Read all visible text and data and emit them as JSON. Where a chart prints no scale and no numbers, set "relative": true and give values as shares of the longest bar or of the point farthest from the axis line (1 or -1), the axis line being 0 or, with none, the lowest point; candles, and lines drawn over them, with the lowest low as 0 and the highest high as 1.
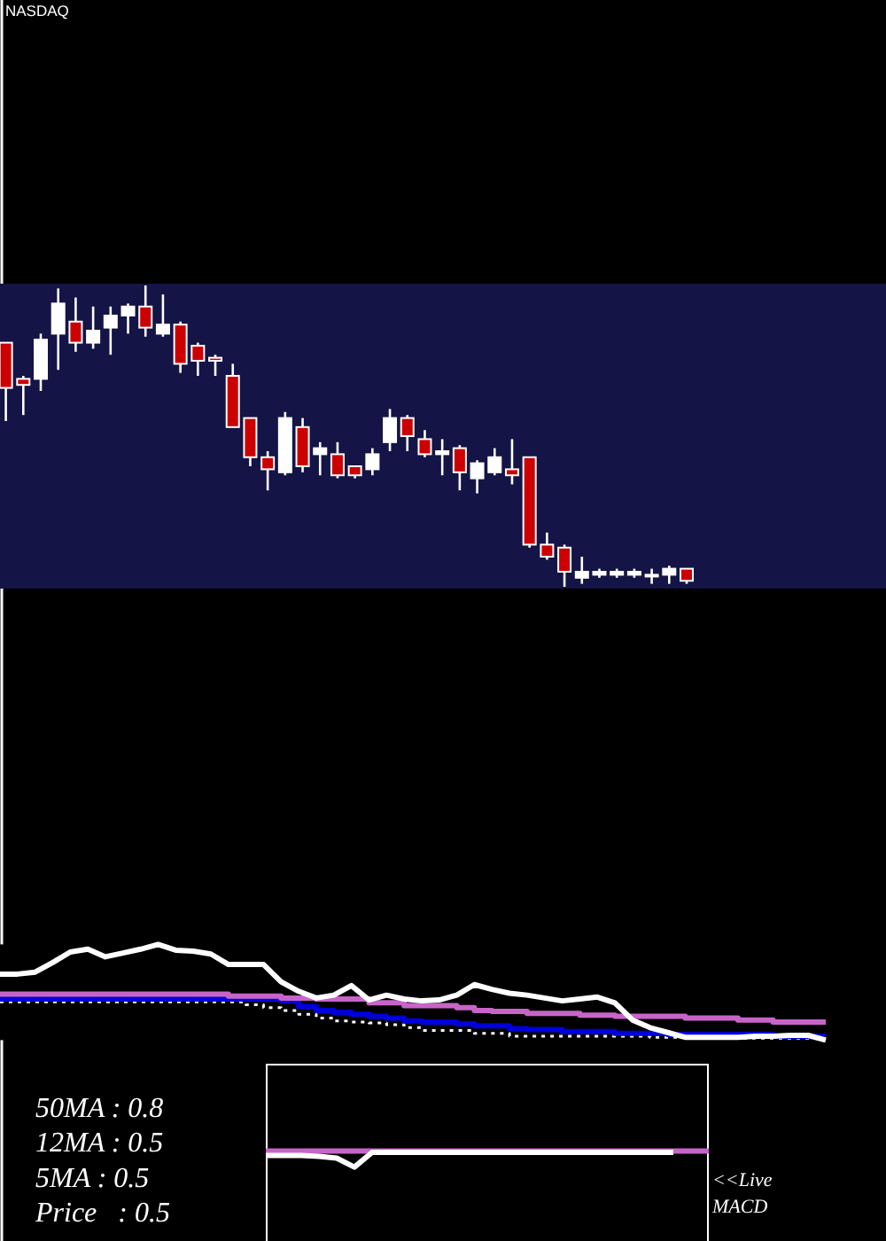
{
  "chart_data": [
    {
      "type": "candlestick",
      "title": "NASDAQ",
      "relative": true,
      "categories": [
        null,
        null,
        null,
        null,
        null,
        null,
        null,
        null,
        null,
        null,
        null,
        null,
        null,
        null,
        null,
        null,
        null,
        null,
        null,
        null,
        null,
        null,
        null,
        null,
        null,
        null,
        null,
        null,
        null,
        null,
        null,
        null,
        null,
        null,
        null,
        null,
        null,
        null,
        null,
        null
      ],
      "ohlc": [
        [
          0.81,
          0.81,
          0.55,
          0.66
        ],
        [
          0.69,
          0.7,
          0.57,
          0.67
        ],
        [
          0.69,
          0.84,
          0.65,
          0.82
        ],
        [
          0.84,
          0.99,
          0.72,
          0.94
        ],
        [
          0.88,
          0.96,
          0.78,
          0.81
        ],
        [
          0.81,
          0.93,
          0.79,
          0.85
        ],
        [
          0.86,
          0.93,
          0.77,
          0.9
        ],
        [
          0.9,
          0.94,
          0.84,
          0.93
        ],
        [
          0.93,
          1,
          0.83,
          0.86
        ],
        [
          0.84,
          0.97,
          0.83,
          0.87
        ],
        [
          0.87,
          0.88,
          0.71,
          0.74
        ],
        [
          0.8,
          0.81,
          0.7,
          0.75
        ],
        [
          0.76,
          0.77,
          0.7,
          0.75
        ],
        [
          0.7,
          0.74,
          0.53,
          0.53
        ],
        [
          0.56,
          0.56,
          0.4,
          0.43
        ],
        [
          0.43,
          0.45,
          0.32,
          0.39
        ],
        [
          0.38,
          0.58,
          0.37,
          0.56
        ],
        [
          0.53,
          0.56,
          0.38,
          0.4
        ],
        [
          0.44,
          0.48,
          0.37,
          0.46
        ],
        [
          0.44,
          0.48,
          0.36,
          0.37
        ],
        [
          0.4,
          0.4,
          0.36,
          0.37
        ],
        [
          0.39,
          0.46,
          0.37,
          0.44
        ],
        [
          0.48,
          0.59,
          0.45,
          0.56
        ],
        [
          0.56,
          0.57,
          0.45,
          0.5
        ],
        [
          0.49,
          0.52,
          0.43,
          0.44
        ],
        [
          0.44,
          0.49,
          0.37,
          0.45
        ],
        [
          0.46,
          0.47,
          0.32,
          0.38
        ],
        [
          0.36,
          0.42,
          0.31,
          0.41
        ],
        [
          0.38,
          0.46,
          0.37,
          0.43
        ],
        [
          0.39,
          0.49,
          0.34,
          0.37
        ],
        [
          0.43,
          0.43,
          0.13,
          0.14
        ],
        [
          0.14,
          0.18,
          0.09,
          0.1
        ],
        [
          0.13,
          0.14,
          0,
          0.05
        ],
        [
          0.03,
          0.1,
          0.01,
          0.05
        ],
        [
          0.04,
          0.06,
          0.03,
          0.05
        ],
        [
          0.04,
          0.06,
          0.03,
          0.05
        ],
        [
          0.04,
          0.06,
          0.03,
          0.05
        ],
        [
          0.04,
          0.06,
          0.01,
          0.04
        ],
        [
          0.04,
          0.07,
          0.01,
          0.06
        ],
        [
          0.06,
          0.06,
          0.01,
          0.02
        ]
      ],
      "colors": [
        "#cc0000",
        "#cc0000",
        "#ffffff",
        "#ffffff",
        "#cc0000",
        "#ffffff",
        "#ffffff",
        "#ffffff",
        "#cc0000",
        "#ffffff",
        "#cc0000",
        "#cc0000",
        "#cc0000",
        "#cc0000",
        "#cc0000",
        "#cc0000",
        "#ffffff",
        "#cc0000",
        "#ffffff",
        "#cc0000",
        "#cc0000",
        "#ffffff",
        "#ffffff",
        "#cc0000",
        "#cc0000",
        "#ffffff",
        "#cc0000",
        "#ffffff",
        "#ffffff",
        "#cc0000",
        "#cc0000",
        "#cc0000",
        "#cc0000",
        "#ffffff",
        "#ffffff",
        "#ffffff",
        "#ffffff",
        "#ffffff",
        "#ffffff",
        "#cc0000"
      ]
    },
    {
      "type": "line",
      "relative": true,
      "categories": [
        null,
        null,
        null,
        null,
        null,
        null,
        null,
        null,
        null,
        null,
        null,
        null,
        null,
        null,
        null,
        null,
        null,
        null,
        null,
        null,
        null,
        null,
        null,
        null,
        null,
        null,
        null,
        null,
        null,
        null,
        null,
        null,
        null,
        null,
        null,
        null,
        null,
        null,
        null,
        null,
        null,
        null,
        null,
        null,
        null,
        null,
        null,
        null
      ],
      "series": [
        {
          "type": "step",
          "line_style": "dotted",
          "color": "#ffffff",
          "values": [
            0.4,
            0.4,
            0.4,
            0.4,
            0.4,
            0.4,
            0.4,
            0.4,
            0.4,
            0.4,
            0.4,
            0.4,
            0.4,
            0.4,
            0.37,
            0.34,
            0.31,
            0.27,
            0.23,
            0.2,
            0.19,
            0.18,
            0.16,
            0.13,
            0.1,
            0.1,
            0.1,
            0.07,
            0.07,
            0.04,
            0.04,
            0.04,
            0.04,
            0.04,
            0.04,
            0.04,
            0.04,
            0.03,
            0.03,
            0.02,
            0.02,
            0.02,
            0.02,
            0.02,
            0.02,
            0.02,
            0.02,
            0.02
          ]
        },
        {
          "type": "step",
          "color": "#0000dc",
          "values": [
            0.43,
            0.43,
            0.43,
            0.43,
            0.43,
            0.43,
            0.43,
            0.43,
            0.43,
            0.43,
            0.43,
            0.43,
            0.43,
            0.43,
            0.43,
            0.43,
            0.41,
            0.35,
            0.31,
            0.29,
            0.27,
            0.25,
            0.23,
            0.2,
            0.19,
            0.19,
            0.17,
            0.15,
            0.15,
            0.12,
            0.11,
            0.11,
            0.09,
            0.09,
            0.09,
            0.07,
            0.07,
            0.07,
            0.06,
            0.06,
            0.06,
            0.06,
            0.06,
            0.06,
            0.04,
            0.04,
            0.04,
            0.04
          ]
        },
        {
          "type": "step",
          "color": "#c864c8",
          "values": [
            0.48,
            0.48,
            0.48,
            0.48,
            0.48,
            0.48,
            0.48,
            0.48,
            0.48,
            0.48,
            0.48,
            0.48,
            0.48,
            0.46,
            0.46,
            0.46,
            0.44,
            0.44,
            0.43,
            0.43,
            0.43,
            0.39,
            0.39,
            0.36,
            0.36,
            0.36,
            0.34,
            0.31,
            0.3,
            0.3,
            0.28,
            0.28,
            0.28,
            0.26,
            0.26,
            0.25,
            0.25,
            0.25,
            0.25,
            0.23,
            0.23,
            0.23,
            0.21,
            0.21,
            0.19,
            0.19,
            0.19,
            0.19
          ]
        },
        {
          "color": "#ffffff",
          "values": [
            0.69,
            0.69,
            0.71,
            0.81,
            0.92,
            0.95,
            0.87,
            0.91,
            0.95,
            1,
            0.94,
            0.93,
            0.9,
            0.79,
            0.79,
            0.79,
            0.61,
            0.51,
            0.44,
            0.47,
            0.57,
            0.42,
            0.47,
            0.43,
            0.41,
            0.42,
            0.47,
            0.58,
            0.53,
            0.49,
            0.47,
            0.44,
            0.41,
            0.43,
            0.45,
            0.39,
            0.21,
            0.13,
            0.08,
            0.03,
            0.03,
            0.03,
            0.03,
            0.04,
            0.04,
            0.05,
            0.05,
            0
          ]
        }
      ]
    },
    {
      "type": "other",
      "annotations": [
        "50MA : 0.8",
        "12MA : 0.5",
        "5MA : 0.5",
        "Price   : 0.5"
      ]
    },
    {
      "type": "line",
      "relative": true,
      "categories": [
        null,
        null,
        null,
        null,
        null,
        null,
        null,
        null,
        null,
        null,
        null,
        null,
        null,
        null,
        null,
        null,
        null,
        null,
        null,
        null,
        null,
        null,
        null,
        null,
        null,
        null
      ],
      "series": [
        {
          "color": "#c864c8",
          "values": [
            1,
            1,
            1,
            1,
            1,
            1,
            1,
            1,
            1,
            1,
            1,
            1,
            1,
            1,
            1,
            1,
            1,
            1,
            1,
            1,
            1,
            1,
            1,
            1,
            1,
            1
          ]
        },
        {
          "color": "#ffffff",
          "values": [
            0.73,
            0.73,
            0.73,
            0.67,
            0.56,
            0,
            0.92,
            0.92,
            0.92,
            0.92,
            0.92,
            0.92,
            0.92,
            0.92,
            0.92,
            0.92,
            0.92,
            0.92,
            0.92,
            0.92,
            0.92,
            0.92,
            0.92,
            0.92,
            null,
            null
          ]
        }
      ],
      "annotations": [
        "<<Live MACD"
      ]
    }
  ]
}
